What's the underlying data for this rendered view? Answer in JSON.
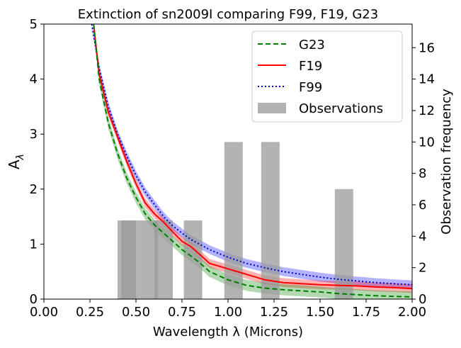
{
  "chart_data": {
    "type": "line",
    "title": "Extinction of sn2009I comparing F99, F19, G23",
    "xlabel": "Wavelength λ (Microns)",
    "ylabel": "Aλ",
    "ylabel_base": "A",
    "ylabel_sub": "λ",
    "y2label": "Observation frequency",
    "xlim": [
      0.0,
      2.0
    ],
    "ylim": [
      0,
      5
    ],
    "y2lim": [
      0,
      17.5
    ],
    "xticks": [
      "0.00",
      "0.25",
      "0.50",
      "0.75",
      "1.00",
      "1.25",
      "1.50",
      "1.75",
      "2.00"
    ],
    "yticks": [
      "0",
      "1",
      "2",
      "3",
      "4",
      "5"
    ],
    "y2ticks": [
      "0",
      "2",
      "4",
      "6",
      "8",
      "10",
      "12",
      "14",
      "16"
    ],
    "legend_position": "top-right",
    "series": [
      {
        "name": "F99",
        "style": "dotted",
        "color": "#0000cc",
        "band_color": "#0000ff",
        "x": [
          0.26,
          0.3,
          0.35,
          0.4,
          0.45,
          0.5,
          0.55,
          0.6,
          0.65,
          0.7,
          0.75,
          0.8,
          0.9,
          1.0,
          1.1,
          1.2,
          1.3,
          1.4,
          1.5,
          1.6,
          1.7,
          1.8,
          1.9,
          2.0
        ],
        "y": [
          5.0,
          4.2,
          3.5,
          3.0,
          2.6,
          2.25,
          1.95,
          1.72,
          1.5,
          1.33,
          1.2,
          1.08,
          0.9,
          0.76,
          0.65,
          0.57,
          0.5,
          0.45,
          0.4,
          0.36,
          0.33,
          0.3,
          0.28,
          0.26
        ],
        "band": 0.08
      },
      {
        "name": "F19",
        "style": "solid",
        "color": "#ff0000",
        "band_color": "#ff0000",
        "x": [
          0.27,
          0.3,
          0.35,
          0.4,
          0.45,
          0.5,
          0.55,
          0.6,
          0.65,
          0.7,
          0.75,
          0.8,
          0.85,
          0.9,
          1.0,
          1.1,
          1.2,
          1.3,
          1.4,
          1.5,
          1.6,
          1.7,
          1.8,
          1.9,
          2.0
        ],
        "y": [
          5.0,
          4.1,
          3.4,
          2.95,
          2.5,
          2.1,
          1.75,
          1.55,
          1.4,
          1.22,
          1.05,
          0.95,
          0.8,
          0.65,
          0.55,
          0.45,
          0.35,
          0.3,
          0.28,
          0.26,
          0.25,
          0.24,
          0.22,
          0.21,
          0.19
        ],
        "band": 0.08
      },
      {
        "name": "G23",
        "style": "dashed",
        "color": "#008000",
        "band_color": "#008000",
        "x": [
          0.27,
          0.3,
          0.35,
          0.4,
          0.45,
          0.5,
          0.55,
          0.6,
          0.65,
          0.7,
          0.75,
          0.8,
          0.85,
          0.9,
          1.0,
          1.1,
          1.2,
          1.3,
          1.4,
          1.5,
          1.6,
          1.7,
          1.8,
          1.9,
          2.0
        ],
        "y": [
          5.0,
          4.0,
          3.2,
          2.65,
          2.2,
          1.85,
          1.55,
          1.35,
          1.2,
          1.05,
          0.9,
          0.78,
          0.65,
          0.5,
          0.35,
          0.25,
          0.2,
          0.17,
          0.15,
          0.13,
          0.1,
          0.08,
          0.06,
          0.05,
          0.04
        ],
        "band": 0.1
      }
    ],
    "observations": {
      "name": "Observations",
      "color": "#999999",
      "bars": [
        {
          "x0": 0.4,
          "x1": 0.5,
          "count": 5
        },
        {
          "x0": 0.42,
          "x1": 0.52,
          "count": 5
        },
        {
          "x0": 0.52,
          "x1": 0.62,
          "count": 5
        },
        {
          "x0": 0.6,
          "x1": 0.7,
          "count": 5
        },
        {
          "x0": 0.76,
          "x1": 0.86,
          "count": 5
        },
        {
          "x0": 0.98,
          "x1": 1.08,
          "count": 10
        },
        {
          "x0": 1.18,
          "x1": 1.28,
          "count": 10
        },
        {
          "x0": 1.58,
          "x1": 1.68,
          "count": 7
        }
      ]
    }
  }
}
